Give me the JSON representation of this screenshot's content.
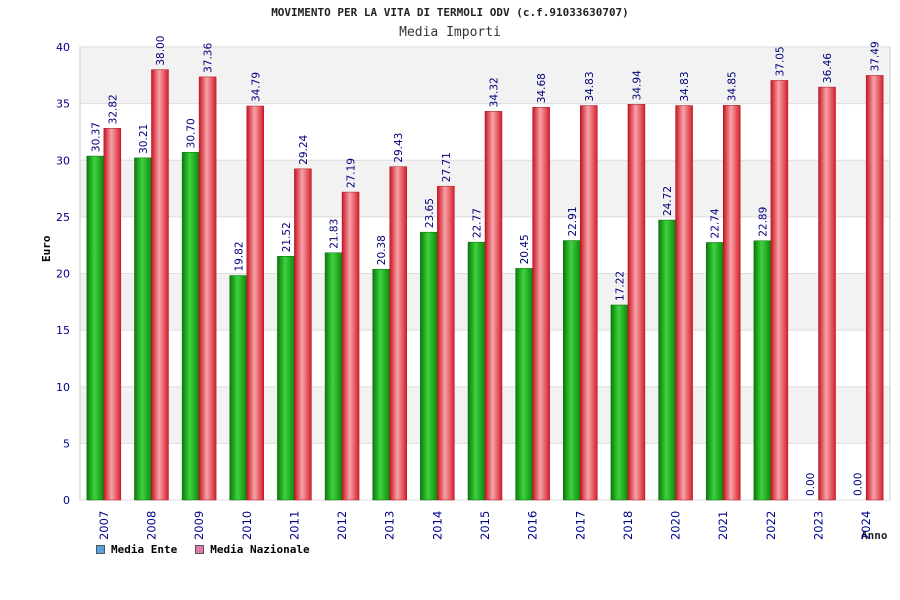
{
  "chart_data": {
    "type": "bar",
    "title": "MOVIMENTO PER LA VITA DI TERMOLI ODV (c.f.91033630707)",
    "subtitle": "Media Importi",
    "xlabel": "Anno",
    "ylabel": "Euro",
    "ylim": [
      0,
      40
    ],
    "yticks": [
      0,
      5,
      10,
      15,
      20,
      25,
      30,
      35,
      40
    ],
    "categories": [
      "2007",
      "2008",
      "2009",
      "2010",
      "2011",
      "2012",
      "2013",
      "2014",
      "2015",
      "2016",
      "2017",
      "2018",
      "2020",
      "2021",
      "2022",
      "2023",
      "2024"
    ],
    "series": [
      {
        "name": "Media Ente",
        "values": [
          30.37,
          30.21,
          30.7,
          19.82,
          21.52,
          21.83,
          20.38,
          23.65,
          22.77,
          20.45,
          22.91,
          17.22,
          24.72,
          22.74,
          22.89,
          0.0,
          0.0
        ],
        "labels": [
          "30.37",
          "30.21",
          "30.70",
          "19.82",
          "21.52",
          "21.83",
          "20.38",
          "23.65",
          "22.77",
          "20.45",
          "22.91",
          "17.22",
          "24.72",
          "22.74",
          "22.89",
          "0.00",
          "0.00"
        ]
      },
      {
        "name": "Media Nazionale",
        "values": [
          32.82,
          38.0,
          37.36,
          34.79,
          29.24,
          27.19,
          29.43,
          27.71,
          34.32,
          34.68,
          34.83,
          34.94,
          34.83,
          34.85,
          37.05,
          36.46,
          37.49
        ],
        "labels": [
          "32.82",
          "38.00",
          "37.36",
          "34.79",
          "29.24",
          "27.19",
          "29.43",
          "27.71",
          "34.32",
          "34.68",
          "34.83",
          "34.94",
          "34.83",
          "34.85",
          "37.05",
          "36.46",
          "37.49"
        ]
      }
    ],
    "grid": true,
    "legend_position": "bottom-left",
    "colors": {
      "bar_ente": "#1fae1f",
      "bar_nazionale": "#e8303a",
      "legend_ente": "#5aa0e6",
      "legend_nazionale": "#e07aa8",
      "axis_text": "#00008b"
    }
  }
}
